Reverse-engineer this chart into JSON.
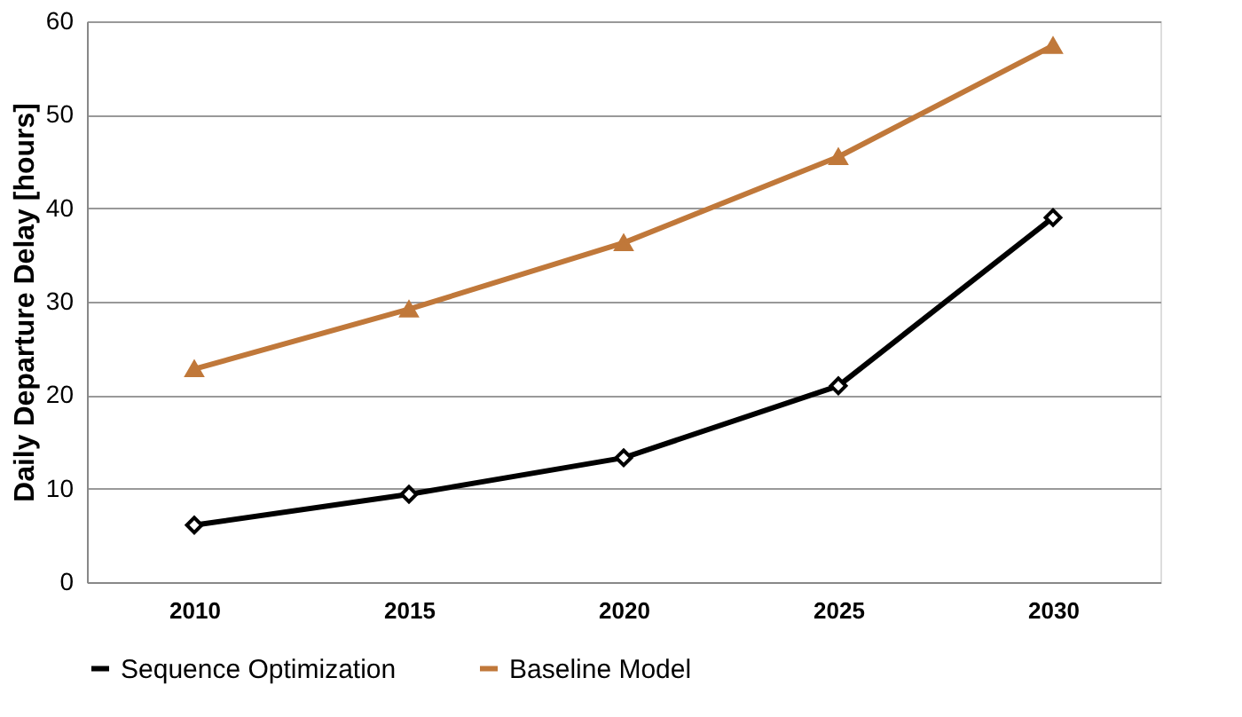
{
  "chart_data": {
    "type": "line",
    "ylabel": "Daily Departure Delay [hours]",
    "categories": [
      "2010",
      "2015",
      "2020",
      "2025",
      "2030"
    ],
    "series": [
      {
        "name": "Sequence Optimization",
        "color": "#000000",
        "marker": "diamond",
        "values": [
          6.1,
          9.4,
          13.3,
          21,
          39
        ]
      },
      {
        "name": "Baseline Model",
        "color": "#c0783a",
        "marker": "triangle",
        "values": [
          22.8,
          29.2,
          36.3,
          45.5,
          57.4
        ]
      }
    ],
    "ylim": [
      0,
      60
    ],
    "yticks": [
      0,
      10,
      20,
      30,
      40,
      50,
      60
    ],
    "grid": "y",
    "legend": "bottom"
  }
}
